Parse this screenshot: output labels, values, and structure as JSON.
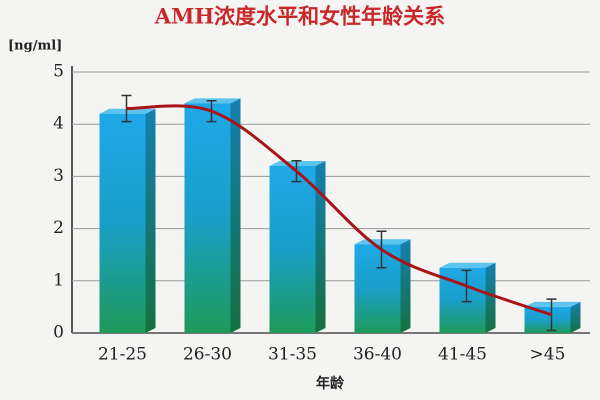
{
  "chart_data": {
    "type": "bar",
    "title": "AMH浓度水平和女性年龄关系",
    "y_label": "[ng/ml]",
    "x_label": "年龄",
    "categories": [
      "21-25",
      "26-30",
      "31-35",
      "36-40",
      "41-45",
      ">45"
    ],
    "values": [
      4.2,
      4.4,
      3.2,
      1.7,
      1.25,
      0.5
    ],
    "means": [
      4.3,
      4.25,
      3.1,
      1.6,
      0.9,
      0.35
    ],
    "errors": [
      0.25,
      0.2,
      0.2,
      0.35,
      0.3,
      0.3
    ],
    "color": "#1ea0d8",
    "line_color": "#a81418",
    "ylim": [
      0,
      5
    ],
    "yticks": [
      0,
      1,
      2,
      3,
      4,
      5
    ],
    "grid": true
  }
}
